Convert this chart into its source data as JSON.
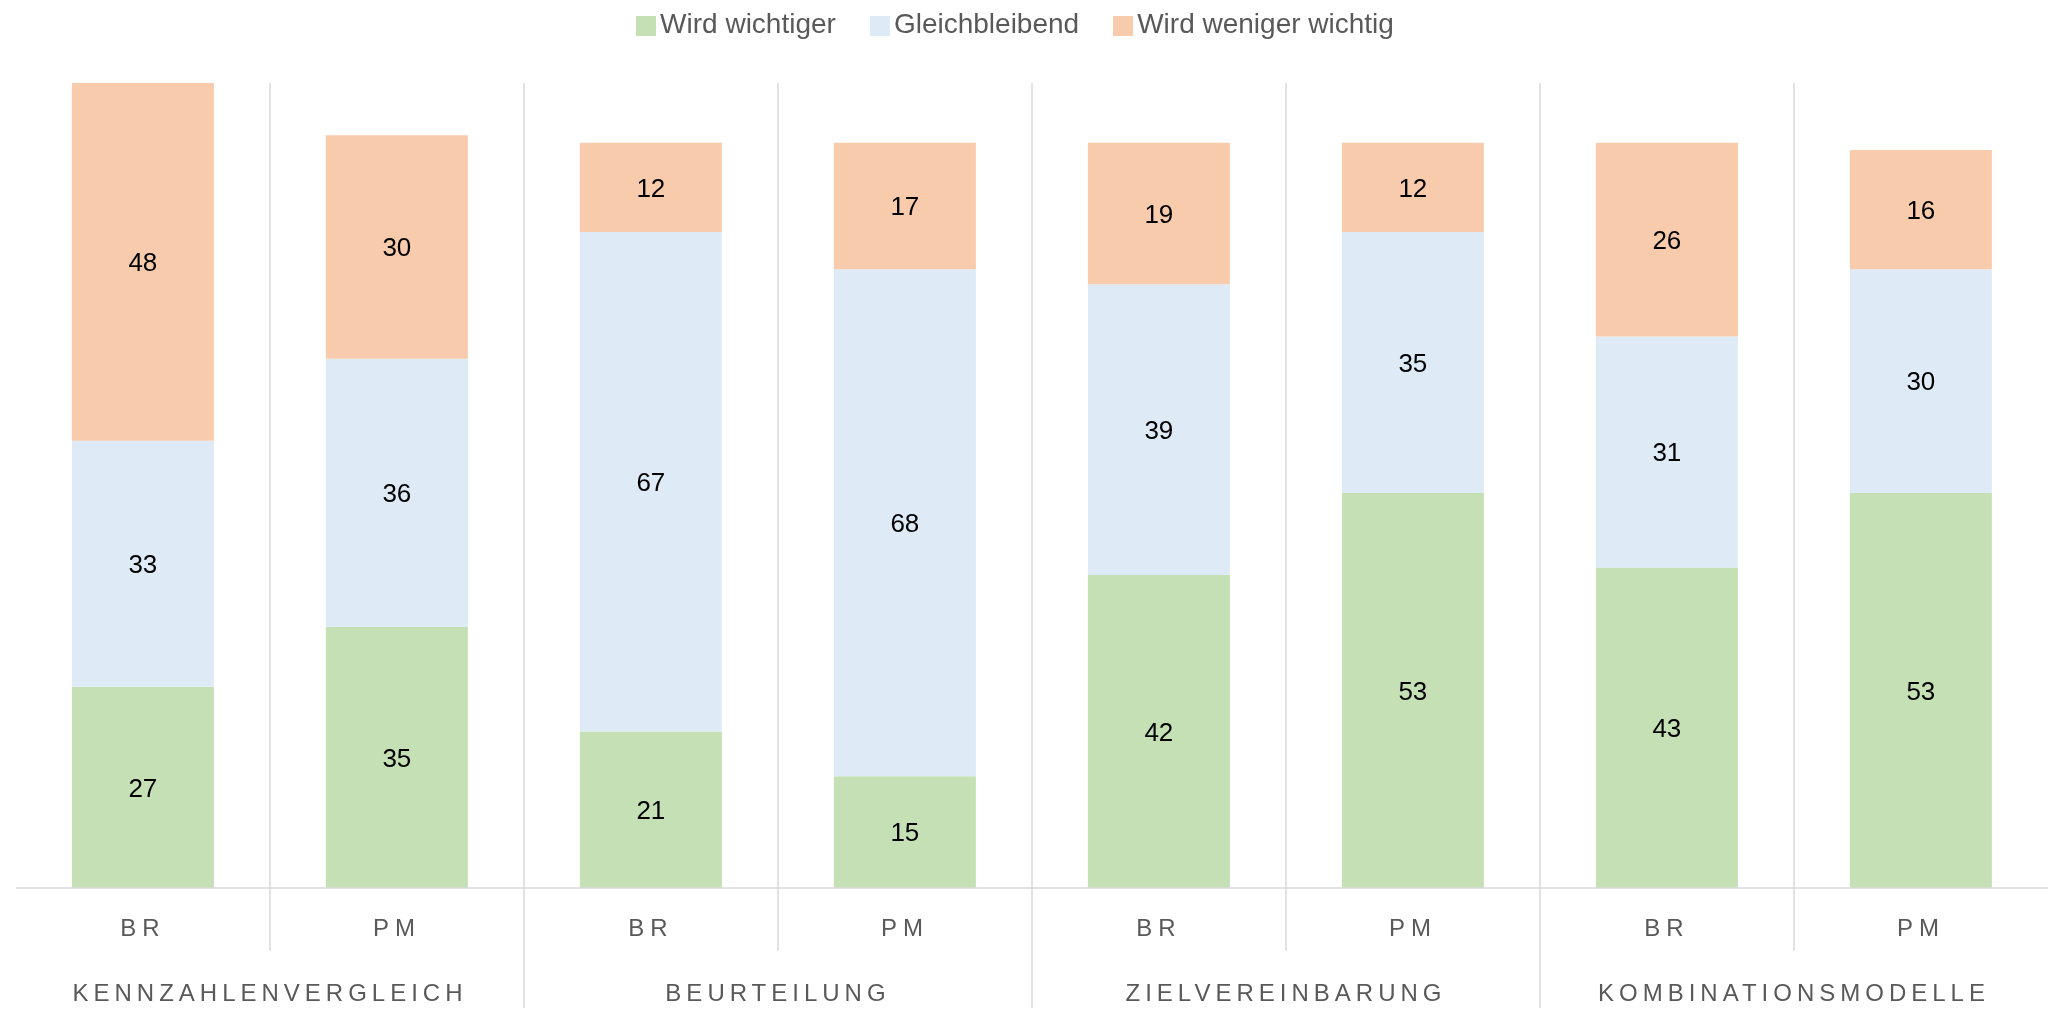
{
  "chart_data": {
    "type": "bar",
    "stacked": true,
    "data_labels": true,
    "grid": "x",
    "legend": "top",
    "categories": [
      "BR",
      "PM",
      "BR",
      "PM",
      "BR",
      "PM",
      "BR",
      "PM"
    ],
    "annotations": [
      "KENNZAHLENVERGLEICH",
      "BEURTEILUNG",
      "ZIELVEREINBARUNG",
      "KOMBINATIONSMODELLE"
    ],
    "series": [
      {
        "name": "Wird wichtiger",
        "color": "#c5e0b4",
        "values": [
          27,
          35,
          21,
          15,
          42,
          53,
          43,
          53
        ]
      },
      {
        "name": "Gleichbleibend",
        "color": "#deebf7",
        "values": [
          33,
          36,
          67,
          68,
          39,
          35,
          31,
          30
        ]
      },
      {
        "name": "Wird weniger wichtig",
        "color": "#f8cbad",
        "values": [
          48,
          30,
          12,
          17,
          19,
          12,
          26,
          16
        ]
      }
    ]
  }
}
